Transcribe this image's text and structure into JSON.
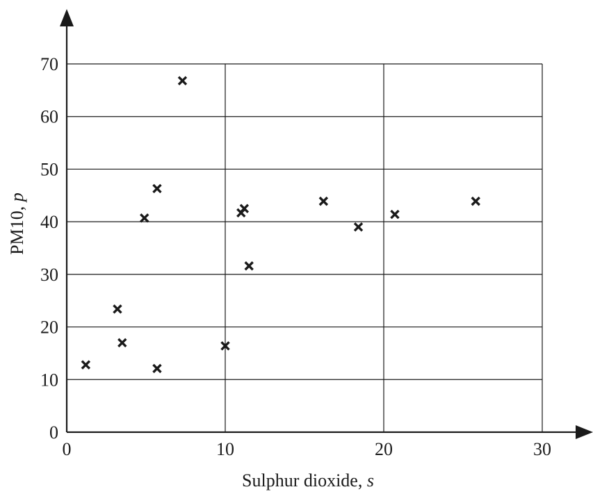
{
  "chart_data": {
    "type": "scatter",
    "xlabel": "Sulphur dioxide, ",
    "xlabel_var": "s",
    "ylabel": "PM10, ",
    "ylabel_var": "p",
    "xlim": [
      0,
      30
    ],
    "ylim": [
      0,
      70
    ],
    "xticks": [
      0,
      10,
      20,
      30
    ],
    "yticks": [
      0,
      10,
      20,
      30,
      40,
      50,
      60,
      70
    ],
    "grid": true,
    "marker": "x",
    "points": [
      {
        "x": 1.2,
        "y": 12.8
      },
      {
        "x": 3.2,
        "y": 23.4
      },
      {
        "x": 3.5,
        "y": 17.0
      },
      {
        "x": 4.9,
        "y": 40.7
      },
      {
        "x": 5.7,
        "y": 46.3
      },
      {
        "x": 5.7,
        "y": 12.1
      },
      {
        "x": 7.3,
        "y": 66.8
      },
      {
        "x": 10.0,
        "y": 16.4
      },
      {
        "x": 11.0,
        "y": 41.7
      },
      {
        "x": 11.2,
        "y": 42.5
      },
      {
        "x": 11.5,
        "y": 31.6
      },
      {
        "x": 16.2,
        "y": 43.9
      },
      {
        "x": 18.4,
        "y": 39.0
      },
      {
        "x": 20.7,
        "y": 41.4
      },
      {
        "x": 25.8,
        "y": 43.9
      }
    ]
  }
}
